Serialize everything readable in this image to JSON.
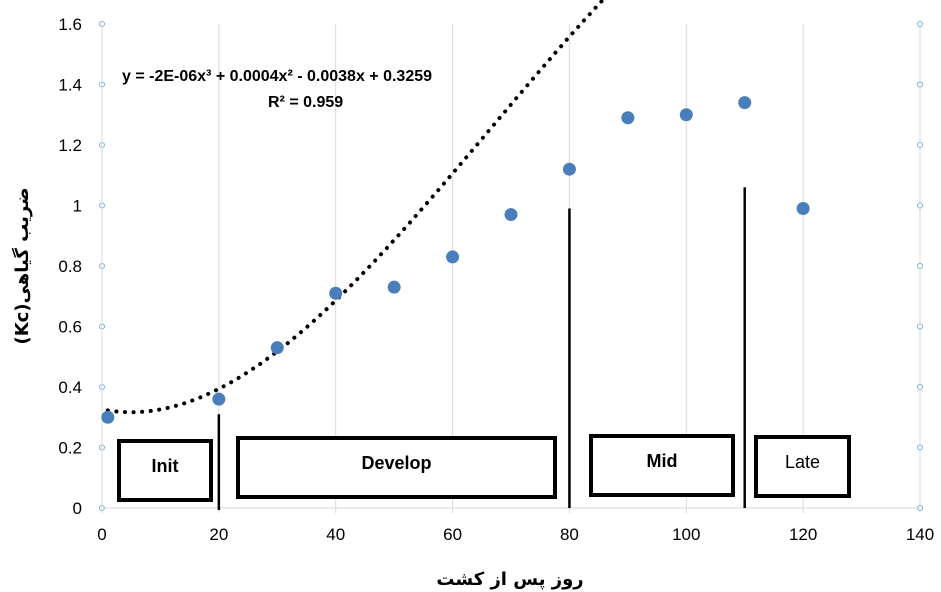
{
  "chart_data": {
    "type": "scatter",
    "xlabel": "روز پس از کشت",
    "ylabel": "ضریب گیاهی(Kc)",
    "xlim": [
      0,
      140
    ],
    "ylim": [
      0,
      1.6
    ],
    "xticks": [
      "0",
      "20",
      "40",
      "60",
      "80",
      "100",
      "120",
      "140"
    ],
    "yticks": [
      "0",
      "0.2",
      "0.4",
      "0.6",
      "0.8",
      "1",
      "1.2",
      "1.4",
      "1.6"
    ],
    "grid": {
      "vertical": true,
      "horizontal": false
    },
    "series": [
      {
        "x": [
          1,
          20,
          30,
          40,
          50,
          60,
          70,
          80,
          90,
          100,
          110,
          120
        ],
        "y": [
          0.3,
          0.36,
          0.53,
          0.71,
          0.73,
          0.83,
          0.97,
          1.12,
          1.29,
          1.3,
          1.34,
          0.99
        ],
        "color": "#4a7ebb"
      }
    ],
    "trendline": {
      "type": "polynomial-3",
      "coefficients": [
        -2e-06,
        0.0004,
        -0.0038,
        0.3259
      ],
      "x_range": [
        1,
        120
      ],
      "style": "dotted",
      "color": "#000000",
      "equation": "y = -2E-06x³ + 0.0004x² - 0.0038x + 0.3259",
      "r2": "R² = 0.959"
    },
    "stage_dividers": [
      20,
      80,
      110
    ],
    "stages": [
      "Init",
      "Develop",
      "Mid",
      "Late"
    ]
  }
}
